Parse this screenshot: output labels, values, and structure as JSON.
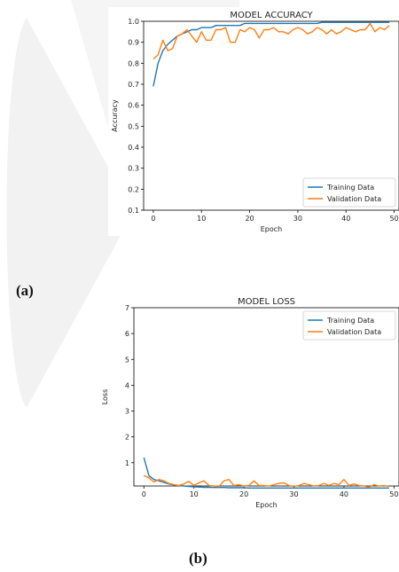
{
  "panels": {
    "a": "(a)",
    "b": "(b)"
  },
  "colors": {
    "training": "#1f77b4",
    "validation": "#ff7f0e",
    "watermark": "#f1f1f1"
  },
  "chart_data": [
    {
      "type": "line",
      "title": "MODEL ACCURACY",
      "xlabel": "Epoch",
      "ylabel": "Accuracy",
      "xlim": [
        -2,
        51
      ],
      "ylim": [
        0.1,
        1.0
      ],
      "xticks": [
        0,
        10,
        20,
        30,
        40,
        50
      ],
      "yticks": [
        0.1,
        0.2,
        0.3,
        0.4,
        0.5,
        0.6,
        0.7,
        0.8,
        0.9,
        1.0
      ],
      "ytick_labels": [
        "0.1",
        "0.2",
        "0.3",
        "0.4",
        "0.5",
        "0.6",
        "0.7",
        "0.8",
        "0.9",
        "1.0"
      ],
      "legend": "lower-right",
      "grid": false,
      "x": [
        0,
        1,
        2,
        3,
        4,
        5,
        6,
        7,
        8,
        9,
        10,
        11,
        12,
        13,
        14,
        15,
        16,
        17,
        18,
        19,
        20,
        21,
        22,
        23,
        24,
        25,
        26,
        27,
        28,
        29,
        30,
        31,
        32,
        33,
        34,
        35,
        36,
        37,
        38,
        39,
        40,
        41,
        42,
        43,
        44,
        45,
        46,
        47,
        48,
        49
      ],
      "series": [
        {
          "name": "Training Data",
          "color": "#1f77b4",
          "values": [
            0.69,
            0.8,
            0.86,
            0.89,
            0.91,
            0.93,
            0.94,
            0.95,
            0.96,
            0.96,
            0.97,
            0.97,
            0.97,
            0.98,
            0.98,
            0.98,
            0.98,
            0.98,
            0.98,
            0.99,
            0.99,
            0.99,
            0.99,
            0.99,
            0.99,
            0.99,
            0.99,
            0.99,
            0.99,
            0.99,
            0.99,
            0.99,
            0.99,
            0.99,
            0.99,
            0.995,
            0.995,
            0.995,
            0.995,
            0.995,
            0.995,
            0.995,
            0.995,
            0.995,
            0.995,
            0.995,
            0.995,
            0.995,
            0.995,
            0.995
          ]
        },
        {
          "name": "Validation Data",
          "color": "#ff7f0e",
          "values": [
            0.82,
            0.84,
            0.91,
            0.86,
            0.87,
            0.93,
            0.94,
            0.96,
            0.93,
            0.9,
            0.95,
            0.91,
            0.91,
            0.96,
            0.96,
            0.97,
            0.9,
            0.9,
            0.96,
            0.95,
            0.97,
            0.96,
            0.92,
            0.96,
            0.96,
            0.97,
            0.95,
            0.95,
            0.94,
            0.96,
            0.97,
            0.96,
            0.94,
            0.95,
            0.97,
            0.96,
            0.94,
            0.96,
            0.94,
            0.95,
            0.97,
            0.96,
            0.95,
            0.96,
            0.96,
            0.99,
            0.95,
            0.97,
            0.96,
            0.98
          ]
        }
      ]
    },
    {
      "type": "line",
      "title": "MODEL LOSS",
      "xlabel": "Epoch",
      "ylabel": "Loss",
      "xlim": [
        -2,
        51
      ],
      "ylim": [
        0.1,
        7
      ],
      "xticks": [
        0,
        10,
        20,
        30,
        40,
        50
      ],
      "yticks": [
        1,
        2,
        3,
        4,
        5,
        6,
        7
      ],
      "ytick_labels": [
        "1",
        "2",
        "3",
        "4",
        "5",
        "6",
        "7"
      ],
      "legend": "top-right",
      "grid": false,
      "x": [
        0,
        1,
        2,
        3,
        4,
        5,
        6,
        7,
        8,
        9,
        10,
        11,
        12,
        13,
        14,
        15,
        16,
        17,
        18,
        19,
        20,
        21,
        22,
        23,
        24,
        25,
        26,
        27,
        28,
        29,
        30,
        31,
        32,
        33,
        34,
        35,
        36,
        37,
        38,
        39,
        40,
        41,
        42,
        43,
        44,
        45,
        46,
        47,
        48,
        49
      ],
      "series": [
        {
          "name": "Training Data",
          "color": "#1f77b4",
          "values": [
            1.2,
            0.5,
            0.35,
            0.3,
            0.24,
            0.18,
            0.14,
            0.12,
            0.1,
            0.08,
            0.07,
            0.06,
            0.05,
            0.05,
            0.04,
            0.04,
            0.04,
            0.03,
            0.03,
            0.03,
            0.03,
            0.02,
            0.02,
            0.02,
            0.02,
            0.02,
            0.02,
            0.02,
            0.02,
            0.02,
            0.02,
            0.02,
            0.02,
            0.02,
            0.02,
            0.02,
            0.02,
            0.02,
            0.02,
            0.02,
            0.02,
            0.02,
            0.02,
            0.02,
            0.02,
            0.02,
            0.02,
            0.02,
            0.02,
            0.02
          ]
        },
        {
          "name": "Validation Data",
          "color": "#ff7f0e",
          "values": [
            0.5,
            0.42,
            0.25,
            0.35,
            0.3,
            0.2,
            0.15,
            0.12,
            0.18,
            0.28,
            0.12,
            0.22,
            0.3,
            0.12,
            0.1,
            0.08,
            0.3,
            0.35,
            0.12,
            0.15,
            0.1,
            0.12,
            0.3,
            0.12,
            0.12,
            0.1,
            0.15,
            0.2,
            0.22,
            0.12,
            0.08,
            0.12,
            0.2,
            0.15,
            0.1,
            0.12,
            0.2,
            0.12,
            0.2,
            0.15,
            0.35,
            0.12,
            0.18,
            0.12,
            0.1,
            0.05,
            0.15,
            0.1,
            0.12,
            0.08
          ]
        }
      ]
    }
  ]
}
